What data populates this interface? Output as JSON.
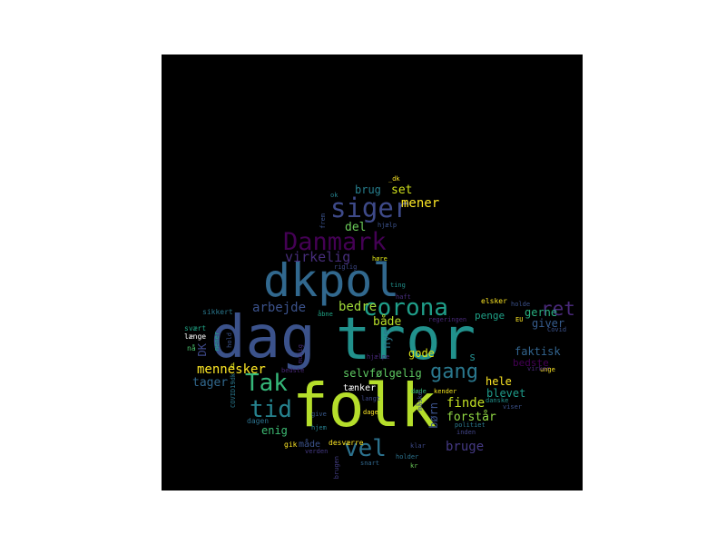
{
  "palette": {
    "background": "#000000",
    "page": "#ffffff",
    "colormap": "viridis"
  },
  "words": [
    {
      "text": "dag",
      "color": "#3b528b",
      "vertical": false
    },
    {
      "text": "tror",
      "color": "#21918c",
      "vertical": false
    },
    {
      "text": "folk",
      "color": "#b5de2b",
      "vertical": false
    },
    {
      "text": "dkpol",
      "color": "#31688e",
      "vertical": false
    },
    {
      "text": "Danmark",
      "color": "#440154",
      "vertical": false
    },
    {
      "text": "siger",
      "color": "#3e4a89",
      "vertical": false
    },
    {
      "text": "corona",
      "color": "#1f9e89",
      "vertical": false
    },
    {
      "text": "Tak",
      "color": "#35b779",
      "vertical": false
    },
    {
      "text": "tid",
      "color": "#26828e",
      "vertical": false
    },
    {
      "text": "vel",
      "color": "#2c728e",
      "vertical": false
    },
    {
      "text": "gang",
      "color": "#2a788e",
      "vertical": false
    },
    {
      "text": "ret",
      "color": "#482878",
      "vertical": false
    },
    {
      "text": "mennesker",
      "color": "#fde725",
      "vertical": false
    },
    {
      "text": "virkelig",
      "color": "#472d7b",
      "vertical": false
    },
    {
      "text": "arbejde",
      "color": "#3b528b",
      "vertical": false
    },
    {
      "text": "bedre",
      "color": "#a0da39",
      "vertical": false
    },
    {
      "text": "både",
      "color": "#b8de29",
      "vertical": false
    },
    {
      "text": "bruge",
      "color": "#443983",
      "vertical": false
    },
    {
      "text": "finde",
      "color": "#c2df23",
      "vertical": false
    },
    {
      "text": "forstår",
      "color": "#90d743",
      "vertical": false
    },
    {
      "text": "selvfølgelig",
      "color": "#5ec962",
      "vertical": false
    },
    {
      "text": "tager",
      "color": "#31688e",
      "vertical": false
    },
    {
      "text": "mener",
      "color": "#fde725",
      "vertical": false
    },
    {
      "text": "set",
      "color": "#d0e11c",
      "vertical": false
    },
    {
      "text": "brug",
      "color": "#277f8e",
      "vertical": false
    },
    {
      "text": "del",
      "color": "#6ccd5a",
      "vertical": false
    },
    {
      "text": "gode",
      "color": "#dde318",
      "vertical": false
    },
    {
      "text": "hele",
      "color": "#fde725",
      "vertical": false
    },
    {
      "text": "enig",
      "color": "#3dbc74",
      "vertical": false
    },
    {
      "text": "nye",
      "color": "#2a788e",
      "vertical": true
    },
    {
      "text": "gerne",
      "color": "#29af7f",
      "vertical": false
    },
    {
      "text": "penge",
      "color": "#1fa187",
      "vertical": false
    },
    {
      "text": "giver",
      "color": "#365c8d",
      "vertical": false
    },
    {
      "text": "faktisk",
      "color": "#32648e",
      "vertical": false
    },
    {
      "text": "bedste",
      "color": "#440154",
      "vertical": false
    },
    {
      "text": "blevet",
      "color": "#1e9b8a",
      "vertical": false
    },
    {
      "text": "tænker",
      "color": "#ffffff",
      "vertical": false
    },
    {
      "text": "måde",
      "color": "#3b528b",
      "vertical": false
    },
    {
      "text": "børn",
      "color": "#3b528b",
      "vertical": true
    },
    {
      "text": "DK",
      "color": "#3e4989",
      "vertical": true
    },
    {
      "text": "s",
      "color": "#228c8d",
      "vertical": false
    },
    {
      "text": "sikkert",
      "color": "#2a788e",
      "vertical": false
    },
    {
      "text": "svært",
      "color": "#20a486",
      "vertical": false
    },
    {
      "text": "længe",
      "color": "#ffffff",
      "vertical": false
    },
    {
      "text": "nå",
      "color": "#4ac16d",
      "vertical": false
    },
    {
      "text": "d",
      "color": "#dde318",
      "vertical": false
    },
    {
      "text": "dagen",
      "color": "#2c728e",
      "vertical": false
    },
    {
      "text": "hjem",
      "color": "#277f8e",
      "vertical": false
    },
    {
      "text": "give",
      "color": "#38598c",
      "vertical": false
    },
    {
      "text": "gik",
      "color": "#fde725",
      "vertical": false
    },
    {
      "text": "verden",
      "color": "#443983",
      "vertical": false
    },
    {
      "text": "desværre",
      "color": "#fde725",
      "vertical": false
    },
    {
      "text": "snart",
      "color": "#31688e",
      "vertical": false
    },
    {
      "text": "holder",
      "color": "#2c728e",
      "vertical": false
    },
    {
      "text": "kr",
      "color": "#6ccd5a",
      "vertical": false
    },
    {
      "text": "klar",
      "color": "#3e4a89",
      "vertical": false
    },
    {
      "text": "inden",
      "color": "#414487",
      "vertical": false
    },
    {
      "text": "politiet",
      "color": "#2a788e",
      "vertical": false
    },
    {
      "text": "viser",
      "color": "#3b528b",
      "vertical": false
    },
    {
      "text": "danske",
      "color": "#21918c",
      "vertical": false
    },
    {
      "text": "kender",
      "color": "#f5e61e",
      "vertical": false
    },
    {
      "text": "døde",
      "color": "#35b779",
      "vertical": false
    },
    {
      "text": "dage",
      "color": "#fde725",
      "vertical": false
    },
    {
      "text": "langt",
      "color": "#3e4989",
      "vertical": false
    },
    {
      "text": "hjælpe",
      "color": "#482878",
      "vertical": false
    },
    {
      "text": "elsker",
      "color": "#fde725",
      "vertical": false
    },
    {
      "text": "holde",
      "color": "#3b528b",
      "vertical": false
    },
    {
      "text": "regeringen",
      "color": "#482878",
      "vertical": false
    },
    {
      "text": "EU",
      "color": "#fde725",
      "vertical": false
    },
    {
      "text": "Covid",
      "color": "#3b528b",
      "vertical": false
    },
    {
      "text": "haft",
      "color": "#472d7b",
      "vertical": false
    },
    {
      "text": "ting",
      "color": "#21918c",
      "vertical": false
    },
    {
      "text": "høre",
      "color": "#dde318",
      "vertical": false
    },
    {
      "text": "riglig",
      "color": "#3e4989",
      "vertical": false
    },
    {
      "text": "hjælp",
      "color": "#3b528b",
      "vertical": false
    },
    {
      "text": "åbne",
      "color": "#20a486",
      "vertical": false
    },
    {
      "text": "ok",
      "color": "#26828e",
      "vertical": false
    },
    {
      "text": "_dk",
      "color": "#fde725",
      "vertical": false
    },
    {
      "text": "frem",
      "color": "#3b528b",
      "vertical": true
    },
    {
      "text": "unge",
      "color": "#fde725",
      "vertical": false
    },
    {
      "text": "virker",
      "color": "#482878",
      "vertical": false
    },
    {
      "text": "COVID19dk",
      "color": "#2a788e",
      "vertical": true
    },
    {
      "text": "mener",
      "color": "#20a486",
      "vertical": true
    },
    {
      "text": "måske",
      "color": "#3e4989",
      "vertical": true
    },
    {
      "text": "mulig",
      "color": "#472d7b",
      "vertical": true
    },
    {
      "text": "brugen",
      "color": "#433e85",
      "vertical": true
    },
    {
      "text": "hold",
      "color": "#3b528b",
      "vertical": true
    },
    {
      "text": "bedste",
      "color": "#482878",
      "vertical": false
    }
  ]
}
